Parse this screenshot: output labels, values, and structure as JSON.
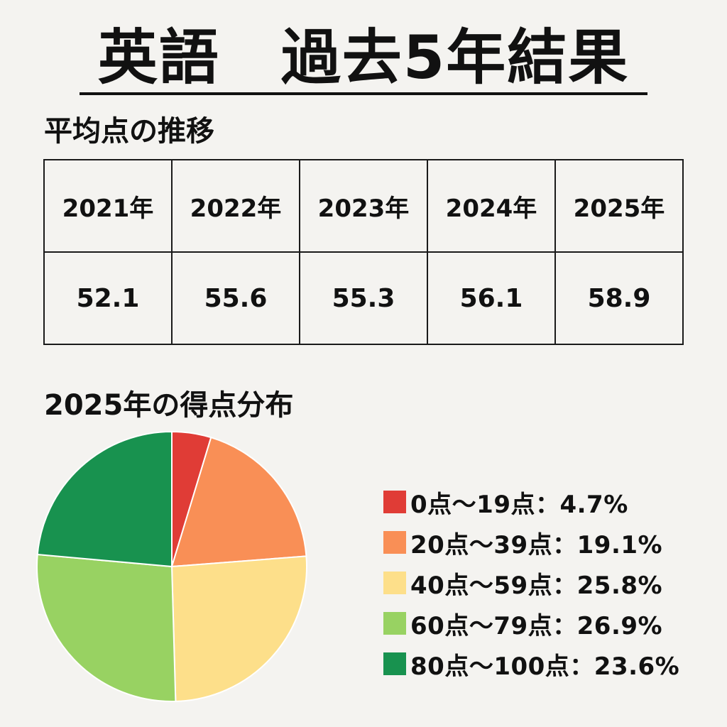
{
  "title": "英語　過去5年結果",
  "average_section": {
    "heading": "平均点の推移",
    "years": [
      "2021年",
      "2022年",
      "2023年",
      "2024年",
      "2025年"
    ],
    "scores": [
      "52.1",
      "55.6",
      "55.3",
      "56.1",
      "58.9"
    ]
  },
  "distribution_section": {
    "heading": "2025年の得点分布"
  },
  "chart_data": {
    "type": "pie",
    "title": "2025年の得点分布",
    "slices": [
      {
        "label": "0点〜19点",
        "value": 4.7,
        "display": "0点〜19点：4.7%",
        "color": "#e03c36"
      },
      {
        "label": "20点〜39点",
        "value": 19.1,
        "display": "20点〜39点：19.1%",
        "color": "#f98f56"
      },
      {
        "label": "40点〜59点",
        "value": 25.8,
        "display": "40点〜59点：25.8%",
        "color": "#fddf8a"
      },
      {
        "label": "60点〜79点",
        "value": 26.9,
        "display": "60点〜79点：26.9%",
        "color": "#98d262"
      },
      {
        "label": "80点〜100点",
        "value": 23.6,
        "display": "80点〜100点：23.6%",
        "color": "#18924f"
      }
    ],
    "legend_position": "right",
    "start_angle": "top, clockwise"
  }
}
